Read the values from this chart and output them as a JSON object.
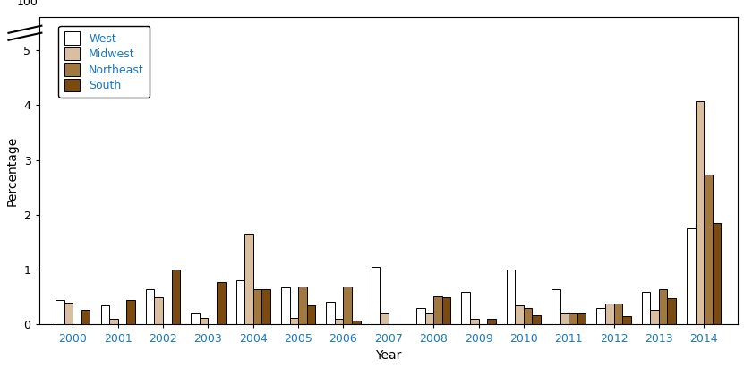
{
  "years": [
    2000,
    2001,
    2002,
    2003,
    2004,
    2005,
    2006,
    2007,
    2008,
    2009,
    2010,
    2011,
    2012,
    2013,
    2014
  ],
  "west": [
    0.45,
    0.35,
    0.65,
    0.2,
    0.8,
    0.68,
    0.42,
    1.05,
    0.3,
    0.6,
    1.0,
    0.65,
    0.3,
    0.6,
    1.75
  ],
  "midwest": [
    0.4,
    0.1,
    0.5,
    0.13,
    1.65,
    0.12,
    0.1,
    0.2,
    0.2,
    0.1,
    0.35,
    0.2,
    0.38,
    0.27,
    4.07
  ],
  "northeast": [
    0.0,
    0.0,
    0.0,
    0.0,
    0.65,
    0.7,
    0.7,
    0.0,
    0.52,
    0.0,
    0.3,
    0.2,
    0.38,
    0.65,
    2.73
  ],
  "south": [
    0.27,
    0.45,
    1.0,
    0.78,
    0.65,
    0.35,
    0.07,
    0.0,
    0.5,
    0.1,
    0.17,
    0.2,
    0.15,
    0.48,
    1.85
  ],
  "colors": {
    "west": "#ffffff",
    "midwest": "#d9bfa0",
    "northeast": "#a07840",
    "south": "#7a4a10"
  },
  "edgecolor": "#000000",
  "xlabel": "Year",
  "ylabel": "Percentage",
  "background_color": "#ffffff",
  "legend_labels": [
    "West",
    "Midwest",
    "Northeast",
    "South"
  ],
  "x_tick_color": "#1a78c2",
  "legend_text_color": "#1a78c2"
}
